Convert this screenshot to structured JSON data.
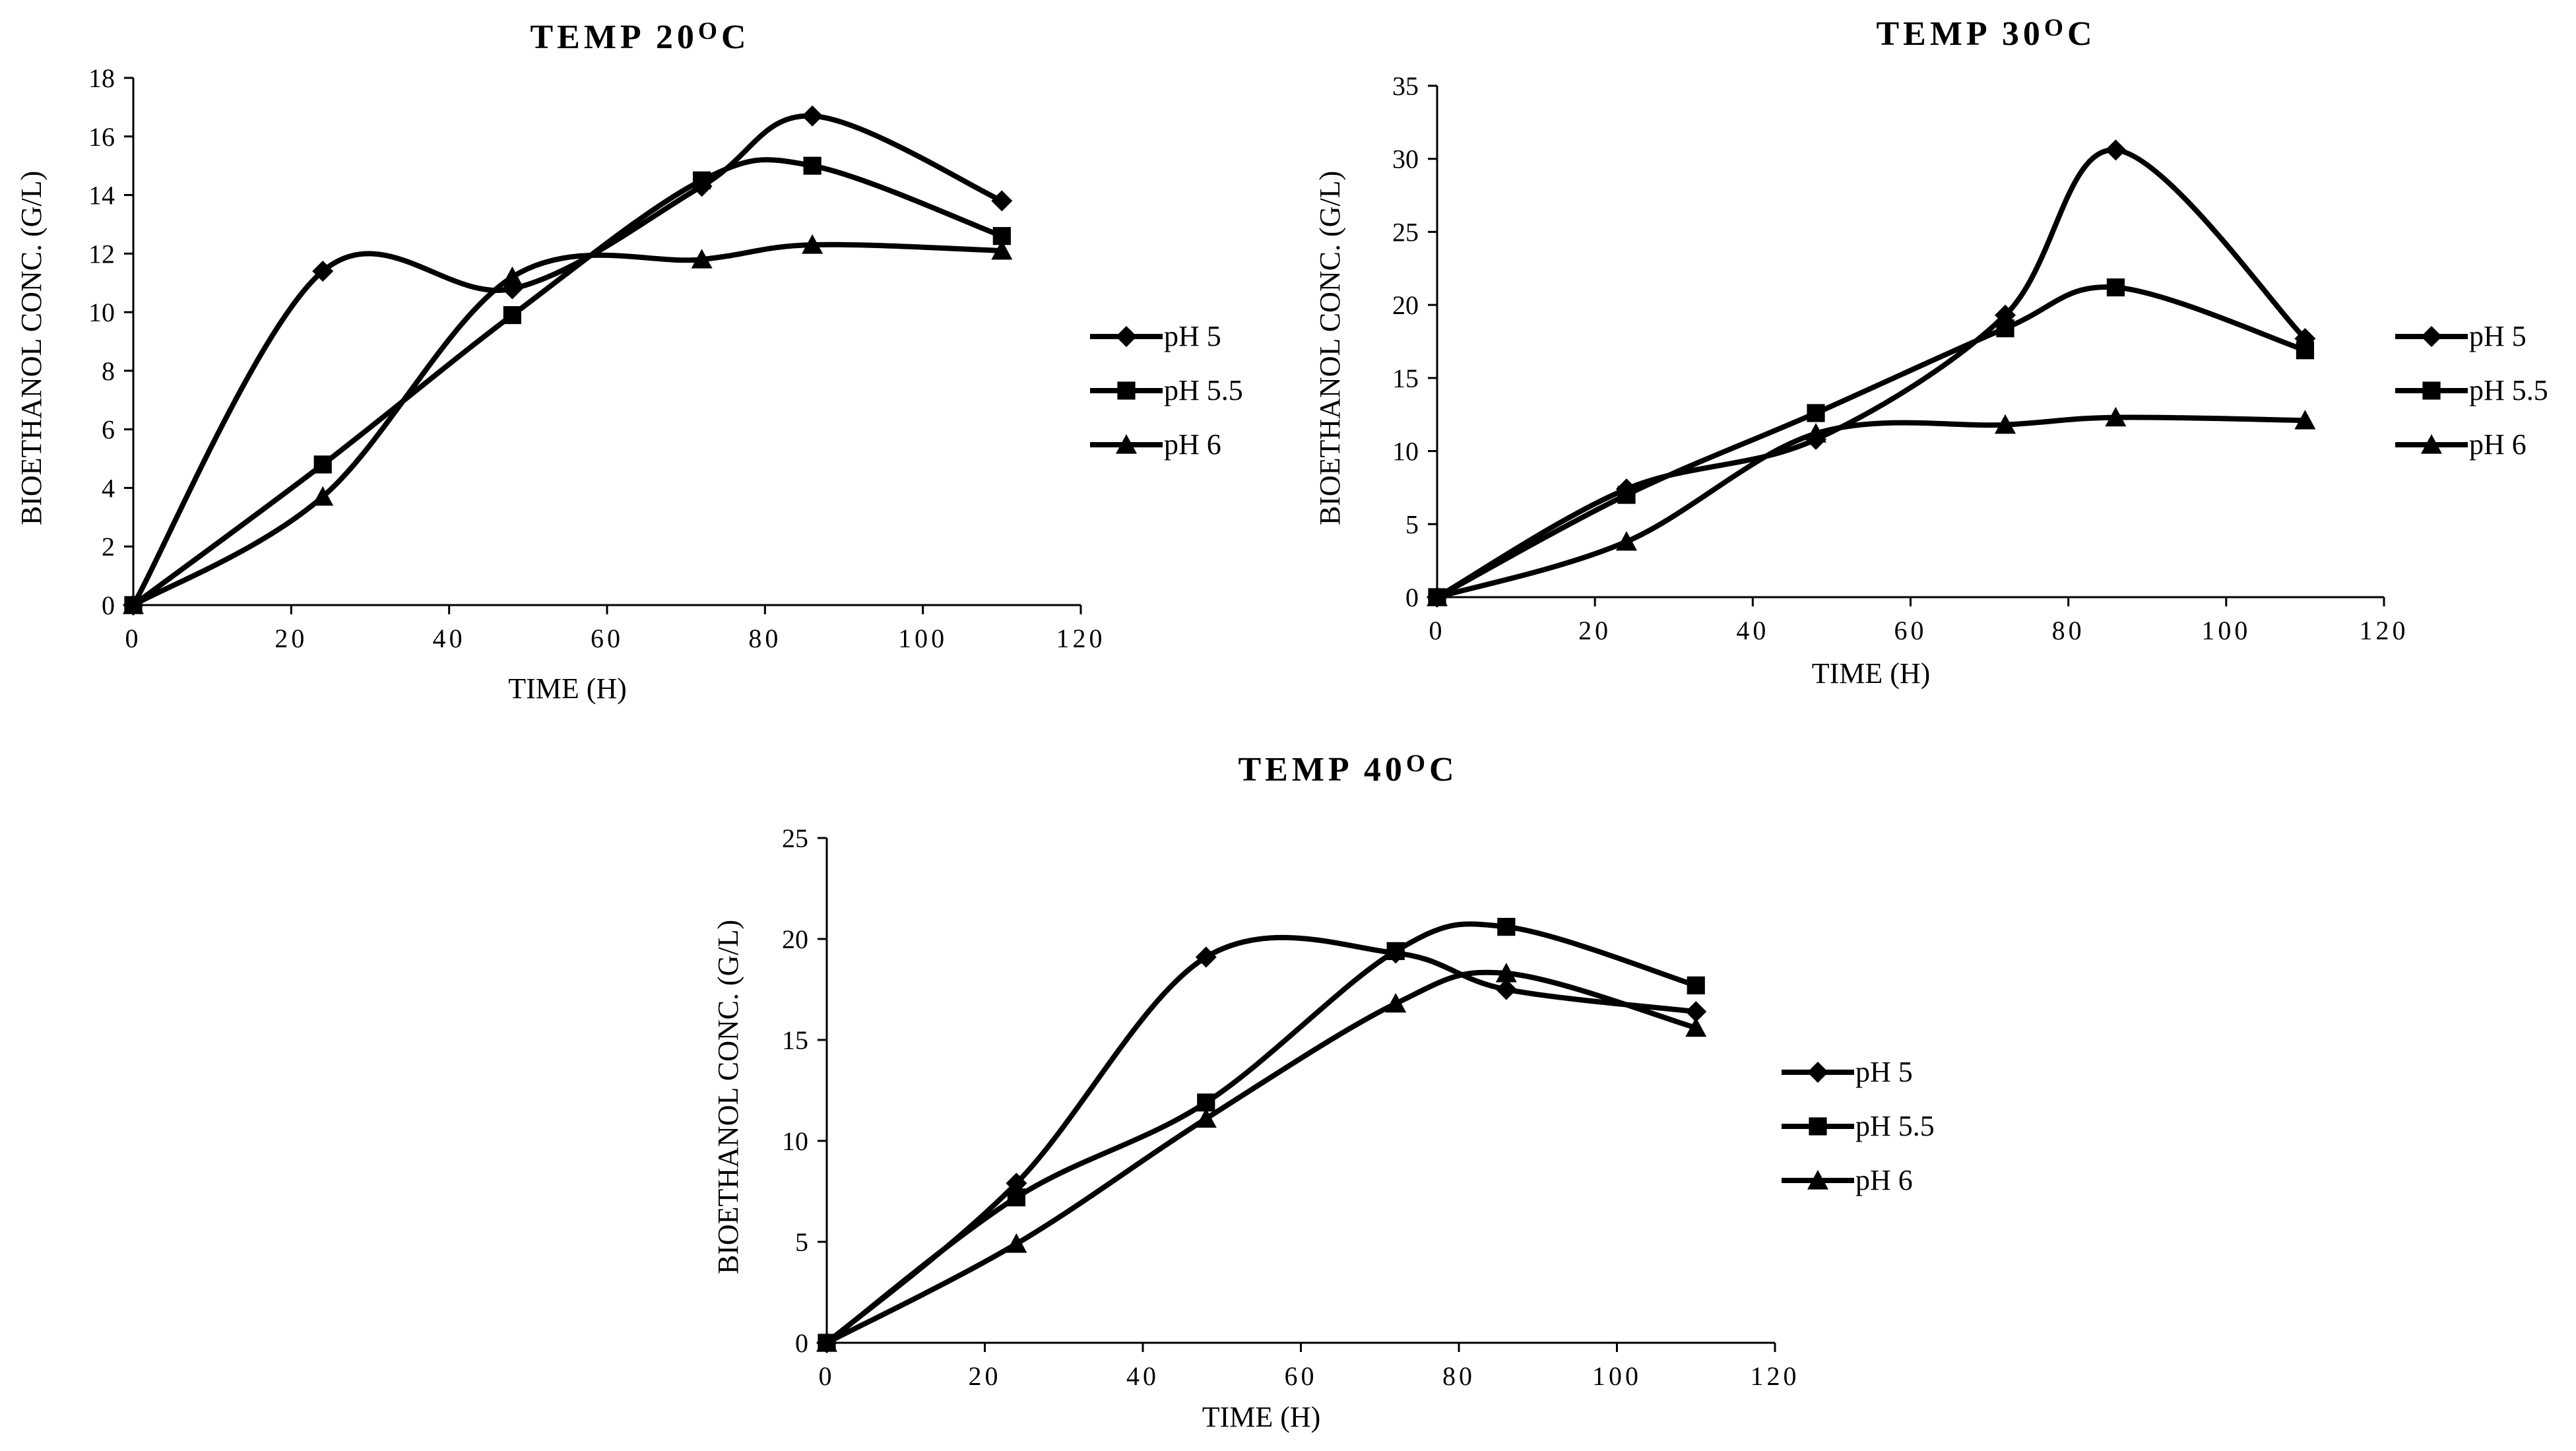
{
  "chart_data": [
    {
      "type": "line",
      "title_prefix": "TEMP 20",
      "title_degree": "O",
      "title_suffix": "C",
      "xlabel": "TIME (H)",
      "ylabel": "BIOETHANOL CONC. (G/L)",
      "xlim": [
        0,
        120
      ],
      "ylim": [
        0,
        18
      ],
      "xticks": [
        0,
        20,
        40,
        60,
        80,
        100,
        120
      ],
      "yticks": [
        0,
        2,
        4,
        6,
        8,
        10,
        12,
        14,
        16,
        18
      ],
      "x": [
        0,
        24,
        48,
        72,
        86,
        110
      ],
      "series": [
        {
          "name": "pH 5",
          "marker": "diamond",
          "values": [
            0,
            11.4,
            10.8,
            14.3,
            16.7,
            13.8
          ]
        },
        {
          "name": "pH 5.5",
          "marker": "square",
          "values": [
            0,
            4.8,
            9.9,
            14.5,
            15.0,
            12.6
          ]
        },
        {
          "name": "pH 6",
          "marker": "triangle",
          "values": [
            0,
            3.7,
            11.2,
            11.8,
            12.3,
            12.1
          ]
        }
      ],
      "legend": "right",
      "grid": false
    },
    {
      "type": "line",
      "title_prefix": "TEMP 30",
      "title_degree": "O",
      "title_suffix": "C",
      "xlabel": "TIME (H)",
      "ylabel": "BIOETHANOL CONC. (G/L)",
      "xlim": [
        0,
        120
      ],
      "ylim": [
        0,
        35
      ],
      "xticks": [
        0,
        20,
        40,
        60,
        80,
        100,
        120
      ],
      "yticks": [
        0,
        5,
        10,
        15,
        20,
        25,
        30,
        35
      ],
      "x": [
        0,
        24,
        48,
        72,
        86,
        110
      ],
      "series": [
        {
          "name": "pH 5",
          "marker": "diamond",
          "values": [
            0,
            7.4,
            10.8,
            19.3,
            30.6,
            17.7
          ]
        },
        {
          "name": "pH 5.5",
          "marker": "square",
          "values": [
            0,
            7.0,
            12.6,
            18.4,
            21.2,
            16.9
          ]
        },
        {
          "name": "pH 6",
          "marker": "triangle",
          "values": [
            0,
            3.8,
            11.2,
            11.8,
            12.3,
            12.1
          ]
        }
      ],
      "legend": "right",
      "grid": false
    },
    {
      "type": "line",
      "title_prefix": "TEMP 40",
      "title_degree": "O",
      "title_suffix": "C",
      "xlabel": "TIME (H)",
      "ylabel": "BIOETHANOL CONC. (G/L)",
      "xlim": [
        0,
        120
      ],
      "ylim": [
        0,
        25
      ],
      "xticks": [
        0,
        20,
        40,
        60,
        80,
        100,
        120
      ],
      "yticks": [
        0,
        5,
        10,
        15,
        20,
        25
      ],
      "x": [
        0,
        24,
        48,
        72,
        86,
        110
      ],
      "series": [
        {
          "name": "pH 5",
          "marker": "diamond",
          "values": [
            0,
            7.9,
            19.1,
            19.3,
            17.5,
            16.4
          ]
        },
        {
          "name": "pH 5.5",
          "marker": "square",
          "values": [
            0,
            7.2,
            11.9,
            19.4,
            20.6,
            17.7
          ]
        },
        {
          "name": "pH 6",
          "marker": "triangle",
          "values": [
            0,
            4.9,
            11.1,
            16.8,
            18.3,
            15.6
          ]
        }
      ],
      "legend": "right",
      "grid": false
    }
  ]
}
